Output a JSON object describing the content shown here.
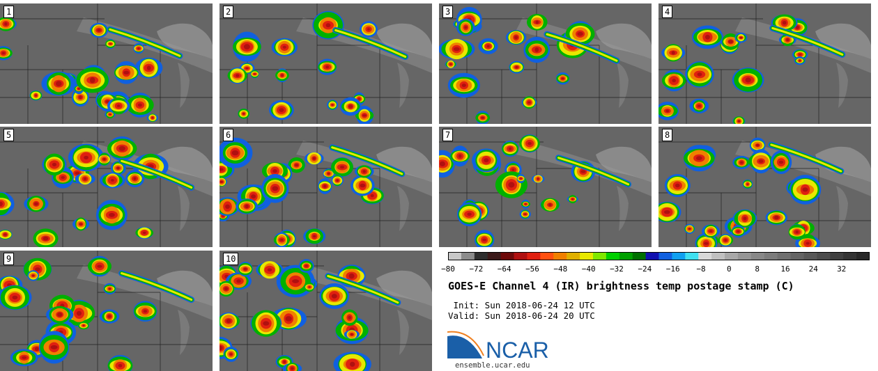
{
  "panels": [
    {
      "label": "1"
    },
    {
      "label": "2"
    },
    {
      "label": "3"
    },
    {
      "label": "4"
    },
    {
      "label": "5"
    },
    {
      "label": "6"
    },
    {
      "label": "7"
    },
    {
      "label": "8"
    },
    {
      "label": "9"
    },
    {
      "label": "10"
    }
  ],
  "colorbar": {
    "ticks": [
      "−80",
      "−72",
      "−64",
      "−56",
      "−48",
      "−40",
      "−32",
      "−24",
      "−16",
      "−8",
      "0",
      "8",
      "16",
      "24",
      "32"
    ],
    "range": [
      -80,
      40
    ],
    "colors": [
      "#c8c8c8",
      "#8c8c8c",
      "#2e2e2e",
      "#3c1a1a",
      "#6e0a0a",
      "#b01010",
      "#e02010",
      "#ff5010",
      "#f08000",
      "#e0b000",
      "#e8e800",
      "#80e800",
      "#00d000",
      "#00a000",
      "#007000",
      "#1010b0",
      "#1060e0",
      "#10a0f0",
      "#40e0f0",
      "#d8d8d8",
      "#c0c0c0",
      "#a8a8a8",
      "#969696",
      "#888888",
      "#7c7c7c",
      "#707070",
      "#646464",
      "#585858",
      "#4c4c4c",
      "#404040",
      "#343434",
      "#282828"
    ]
  },
  "title": "GOES-E Channel 4 (IR) brightness temp postage stamp (C)",
  "init": " Init: Sun 2018-06-24 12 UTC",
  "valid": "Valid: Sun 2018-06-24 20 UTC",
  "logo": {
    "text": "NCAR",
    "url": "ensemble.ucar.edu"
  }
}
